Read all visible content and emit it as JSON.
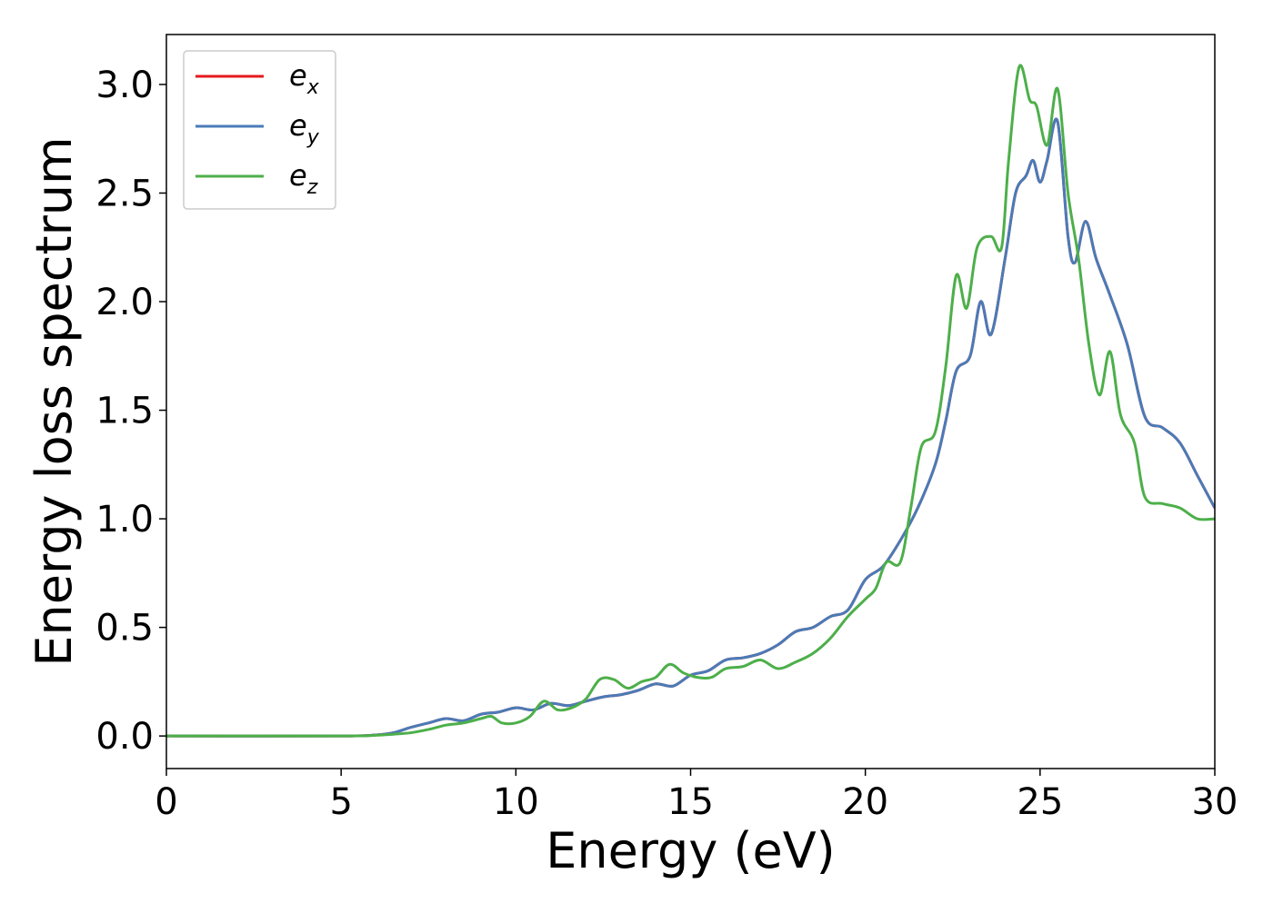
{
  "chart_data": {
    "type": "line",
    "title": "",
    "xlabel": "Energy (eV)",
    "ylabel": "Energy loss spectrum",
    "xlim": [
      0,
      30
    ],
    "ylim": [
      -0.15,
      3.23
    ],
    "xticks": [
      0,
      5,
      10,
      15,
      20,
      25,
      30
    ],
    "xtick_labels": [
      "0",
      "5",
      "10",
      "15",
      "20",
      "25",
      "30"
    ],
    "yticks": [
      0.0,
      0.5,
      1.0,
      1.5,
      2.0,
      2.5,
      3.0
    ],
    "ytick_labels": [
      "0.0",
      "0.5",
      "1.0",
      "1.5",
      "2.0",
      "2.5",
      "3.0"
    ],
    "grid": false,
    "legend_position": "top-left",
    "series": [
      {
        "name": "e",
        "subscript": "x",
        "color": "#e41a1c",
        "x": [
          0,
          5,
          6,
          6.5,
          7,
          7.5,
          8,
          8.5,
          9,
          9.5,
          10,
          10.5,
          11,
          11.5,
          12,
          12.5,
          13,
          13.5,
          14,
          14.5,
          15,
          15.5,
          16,
          16.5,
          17,
          17.5,
          18,
          18.5,
          19,
          19.5,
          20,
          20.5,
          21,
          21.5,
          22,
          22.3,
          22.6,
          23,
          23.3,
          23.6,
          24,
          24.3,
          24.6,
          24.8,
          25,
          25.2,
          25.5,
          25.8,
          26,
          26.3,
          26.6,
          27,
          27.5,
          28,
          28.5,
          29,
          29.5,
          30
        ],
        "y": [
          0,
          0,
          0.005,
          0.015,
          0.04,
          0.06,
          0.08,
          0.07,
          0.1,
          0.11,
          0.13,
          0.12,
          0.15,
          0.14,
          0.16,
          0.18,
          0.19,
          0.21,
          0.24,
          0.23,
          0.28,
          0.3,
          0.35,
          0.36,
          0.38,
          0.42,
          0.48,
          0.5,
          0.55,
          0.58,
          0.72,
          0.78,
          0.9,
          1.05,
          1.25,
          1.45,
          1.68,
          1.75,
          2.0,
          1.85,
          2.2,
          2.5,
          2.58,
          2.65,
          2.55,
          2.65,
          2.83,
          2.3,
          2.18,
          2.37,
          2.2,
          2.03,
          1.8,
          1.47,
          1.42,
          1.35,
          1.2,
          1.05
        ]
      },
      {
        "name": "e",
        "subscript": "y",
        "color": "#4a7bb7",
        "x": [
          0,
          5,
          6,
          6.5,
          7,
          7.5,
          8,
          8.5,
          9,
          9.5,
          10,
          10.5,
          11,
          11.5,
          12,
          12.5,
          13,
          13.5,
          14,
          14.5,
          15,
          15.5,
          16,
          16.5,
          17,
          17.5,
          18,
          18.5,
          19,
          19.5,
          20,
          20.5,
          21,
          21.5,
          22,
          22.3,
          22.6,
          23,
          23.3,
          23.6,
          24,
          24.3,
          24.6,
          24.8,
          25,
          25.2,
          25.5,
          25.8,
          26,
          26.3,
          26.6,
          27,
          27.5,
          28,
          28.5,
          29,
          29.5,
          30
        ],
        "y": [
          0,
          0,
          0.005,
          0.015,
          0.04,
          0.06,
          0.08,
          0.07,
          0.1,
          0.11,
          0.13,
          0.12,
          0.15,
          0.14,
          0.16,
          0.18,
          0.19,
          0.21,
          0.24,
          0.23,
          0.28,
          0.3,
          0.35,
          0.36,
          0.38,
          0.42,
          0.48,
          0.5,
          0.55,
          0.58,
          0.72,
          0.78,
          0.9,
          1.05,
          1.25,
          1.45,
          1.68,
          1.75,
          2.0,
          1.85,
          2.2,
          2.5,
          2.58,
          2.65,
          2.55,
          2.65,
          2.83,
          2.3,
          2.18,
          2.37,
          2.2,
          2.03,
          1.8,
          1.47,
          1.42,
          1.35,
          1.2,
          1.05
        ]
      },
      {
        "name": "e",
        "subscript": "z",
        "color": "#4daf4a",
        "x": [
          0,
          5,
          6,
          6.5,
          7,
          7.5,
          8,
          8.5,
          9,
          9.3,
          9.6,
          10,
          10.4,
          10.8,
          11.2,
          11.6,
          12,
          12.4,
          12.8,
          13.2,
          13.6,
          14,
          14.4,
          14.8,
          15.2,
          15.6,
          16,
          16.5,
          17,
          17.5,
          18,
          18.5,
          19,
          19.5,
          20,
          20.3,
          20.6,
          21,
          21.3,
          21.6,
          22,
          22.3,
          22.6,
          22.9,
          23.2,
          23.6,
          23.9,
          24.1,
          24.4,
          24.7,
          24.9,
          25.2,
          25.5,
          25.8,
          26.1,
          26.4,
          26.7,
          27,
          27.3,
          27.7,
          28,
          28.5,
          29,
          29.5,
          30
        ],
        "y": [
          0,
          0,
          0.003,
          0.008,
          0.015,
          0.03,
          0.05,
          0.06,
          0.08,
          0.09,
          0.06,
          0.06,
          0.09,
          0.16,
          0.12,
          0.13,
          0.17,
          0.26,
          0.26,
          0.22,
          0.25,
          0.27,
          0.33,
          0.29,
          0.27,
          0.27,
          0.31,
          0.32,
          0.35,
          0.31,
          0.34,
          0.38,
          0.45,
          0.55,
          0.63,
          0.68,
          0.8,
          0.8,
          1.05,
          1.33,
          1.4,
          1.7,
          2.12,
          1.97,
          2.25,
          2.3,
          2.25,
          2.65,
          3.08,
          2.93,
          2.9,
          2.72,
          2.98,
          2.5,
          2.2,
          1.8,
          1.57,
          1.77,
          1.48,
          1.35,
          1.1,
          1.07,
          1.05,
          1.0,
          1.0
        ]
      }
    ]
  }
}
